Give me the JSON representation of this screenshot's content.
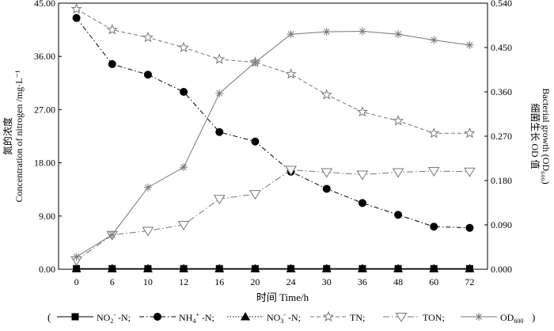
{
  "chart_data": {
    "type": "line",
    "categories": [
      "0",
      "6",
      "10",
      "12",
      "16",
      "20",
      "24",
      "30",
      "36",
      "48",
      "60",
      "72"
    ],
    "xlabel": "时间 Time/h",
    "ylabel_left_cn": "氮的浓度",
    "ylabel_left_en": "Concentration of nitrogen /mg·L⁻¹",
    "ylabel_right_cn": "细菌生长 OD 值",
    "ylabel_right_en": "Bacterial growth (OD₆₀₀)",
    "yleft_ticks": [
      "0.00",
      "9.00",
      "18.00",
      "27.00",
      "36.00",
      "45.00"
    ],
    "yleft_lim": [
      0,
      45
    ],
    "yright_ticks": [
      "0.000",
      "0.090",
      "0.180",
      "0.270",
      "0.360",
      "0.450",
      "0.540"
    ],
    "yright_lim": [
      0,
      0.54
    ],
    "legend_position": "bottom",
    "series": [
      {
        "name": "NO₂⁻-N;",
        "legend": [
          "NO",
          "2",
          "-",
          " -N;"
        ],
        "axis": "left",
        "marker": "square",
        "dash": "0",
        "color": "#000000",
        "values": [
          0.1,
          0.1,
          0.1,
          0.1,
          0.1,
          0.1,
          0.1,
          0.1,
          0.1,
          0.1,
          0.1,
          0.1
        ]
      },
      {
        "name": "NH₄⁺-N;",
        "legend": [
          "NH",
          "4",
          "+",
          " -N;"
        ],
        "axis": "left",
        "marker": "circle",
        "dash": "6 3 1.5 3",
        "color": "#000000",
        "values": [
          42.5,
          34.7,
          32.9,
          30.0,
          23.2,
          21.6,
          16.5,
          13.6,
          11.2,
          9.2,
          7.2,
          7.0
        ]
      },
      {
        "name": "NO₃⁻-N;",
        "legend": [
          "NO",
          "3",
          "-",
          " -N;"
        ],
        "axis": "left",
        "marker": "triangle",
        "dash": "1.5 2",
        "color": "#000000",
        "values": [
          0.1,
          0.1,
          0.1,
          0.1,
          0.1,
          0.1,
          0.1,
          0.1,
          0.1,
          0.1,
          0.1,
          0.1
        ]
      },
      {
        "name": "TN;",
        "legend": [
          "TN;"
        ],
        "axis": "left",
        "marker": "star",
        "dash": "5 3",
        "color": "#777777",
        "values": [
          44.0,
          40.5,
          39.2,
          37.5,
          35.5,
          35.0,
          33.0,
          29.5,
          26.6,
          25.1,
          23.0,
          23.0
        ]
      },
      {
        "name": "TON;",
        "legend": [
          "TON;"
        ],
        "axis": "left",
        "marker": "invtriangle",
        "dash": "8 3 1.5 3",
        "color": "#777777",
        "values": [
          1.5,
          5.8,
          6.5,
          7.5,
          11.9,
          12.7,
          16.8,
          16.4,
          16.0,
          16.4,
          16.6,
          16.5
        ]
      },
      {
        "name": "OD₆₀₀",
        "legend": [
          "OD",
          "600",
          "",
          ""
        ],
        "axis": "right",
        "marker": "asterisk",
        "dash": "0",
        "color": "#777777",
        "values": [
          0.025,
          0.07,
          0.166,
          0.207,
          0.357,
          0.42,
          0.477,
          0.482,
          0.483,
          0.477,
          0.465,
          0.455
        ]
      }
    ]
  }
}
